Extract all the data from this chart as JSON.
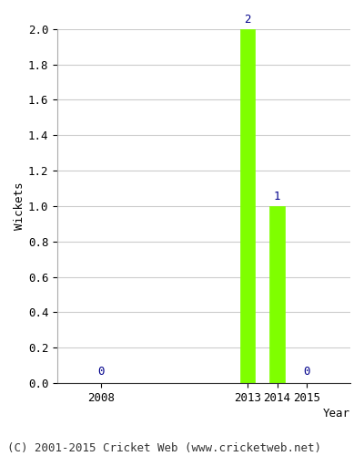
{
  "years": [
    2008,
    2013,
    2014,
    2015
  ],
  "wickets": [
    0,
    2,
    1,
    0
  ],
  "bar_color": "#7FFF00",
  "bar_edgecolor": "#7FFF00",
  "label_color": "#00008B",
  "xlabel": "Year",
  "ylabel": "Wickets",
  "ylim": [
    0.0,
    2.0
  ],
  "yticks": [
    0.0,
    0.2,
    0.4,
    0.6,
    0.8,
    1.0,
    1.2,
    1.4,
    1.6,
    1.8,
    2.0
  ],
  "title": "",
  "footer": "(C) 2001-2015 Cricket Web (www.cricketweb.net)",
  "bar_width": 0.5,
  "grid_color": "#cccccc",
  "label_fontsize": 9,
  "axis_label_fontsize": 9,
  "tick_fontsize": 9,
  "footer_fontsize": 9
}
